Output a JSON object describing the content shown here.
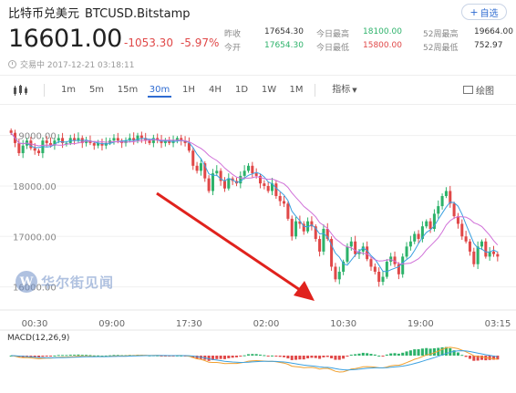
{
  "header": {
    "name": "比特币兑美元",
    "symbol": "BTCUSD.Bitstamp",
    "watch_label": "自选",
    "price": "16601.00",
    "change": "-1053.30",
    "change_pct": "-5.97%",
    "trade_time": "交易中 2017-12-21 03:18:11"
  },
  "stats": [
    {
      "label": "昨收",
      "value": "17654.30",
      "color": "#333333"
    },
    {
      "label": "今开",
      "value": "17654.30",
      "color": "#2db26a"
    },
    {
      "label": "今日最高",
      "value": "18100.00",
      "color": "#2db26a"
    },
    {
      "label": "今日最低",
      "value": "15800.00",
      "color": "#e04848"
    },
    {
      "label": "52周最高",
      "value": "19664.00",
      "color": "#333333"
    },
    {
      "label": "52周最低",
      "value": "752.97",
      "color": "#333333"
    }
  ],
  "toolbar": {
    "items": [
      "1m",
      "5m",
      "15m",
      "30m",
      "1H",
      "4H",
      "1D",
      "1W",
      "1M"
    ],
    "active": "30m",
    "indicator": "指标",
    "draw": "绘图"
  },
  "watermark": "华尔街见闻",
  "macd_label": "MACD(12,26,9)",
  "colors": {
    "up": "#2db26a",
    "down": "#e04848",
    "accent": "#2e6bd1",
    "ma_short": "#3aa0e0",
    "ma_long": "#d070d8",
    "arrow": "#e0221d"
  },
  "chart_data": {
    "type": "candlestick",
    "symbol": "BTCUSD.Bitstamp",
    "interval": "30m",
    "y_ticks": [
      "19000.00",
      "18000.00",
      "17000.00",
      "16000.00"
    ],
    "ylim": [
      15650,
      19300
    ],
    "x_ticks": [
      "00:30",
      "09:00",
      "17:30",
      "02:00",
      "10:30",
      "19:00",
      "03:15"
    ],
    "close_series": [
      19050,
      18850,
      18650,
      18800,
      18900,
      18750,
      18700,
      18650,
      18900,
      18850,
      18800,
      18900,
      18950,
      18850,
      18850,
      18950,
      18900,
      18950,
      18850,
      18900,
      18850,
      18800,
      18850,
      18800,
      18850,
      18900,
      18950,
      18900,
      18850,
      18900,
      18950,
      18900,
      19000,
      18950,
      18900,
      18850,
      18950,
      18900,
      18850,
      18900,
      18850,
      18900,
      18950,
      18900,
      18850,
      18700,
      18400,
      18300,
      18450,
      18150,
      17900,
      18250,
      18300,
      18100,
      17950,
      18150,
      18100,
      18050,
      18200,
      18300,
      18400,
      18250,
      18200,
      18050,
      18000,
      17900,
      18050,
      17800,
      17700,
      17650,
      17350,
      17000,
      17300,
      17250,
      17100,
      17300,
      17200,
      16950,
      16700,
      17150,
      16950,
      16400,
      16150,
      16300,
      16500,
      16800,
      16900,
      16650,
      16700,
      16800,
      16550,
      16400,
      16300,
      16100,
      16200,
      16500,
      16600,
      16450,
      16250,
      16600,
      16800,
      16900,
      17050,
      16950,
      17200,
      17300,
      17150,
      17450,
      17600,
      17800,
      17900,
      17650,
      17400,
      17250,
      17000,
      16900,
      16700,
      16450,
      16800,
      16900,
      16600,
      16700,
      16650,
      16601
    ],
    "markers": [
      "down-arrow annotation"
    ]
  }
}
